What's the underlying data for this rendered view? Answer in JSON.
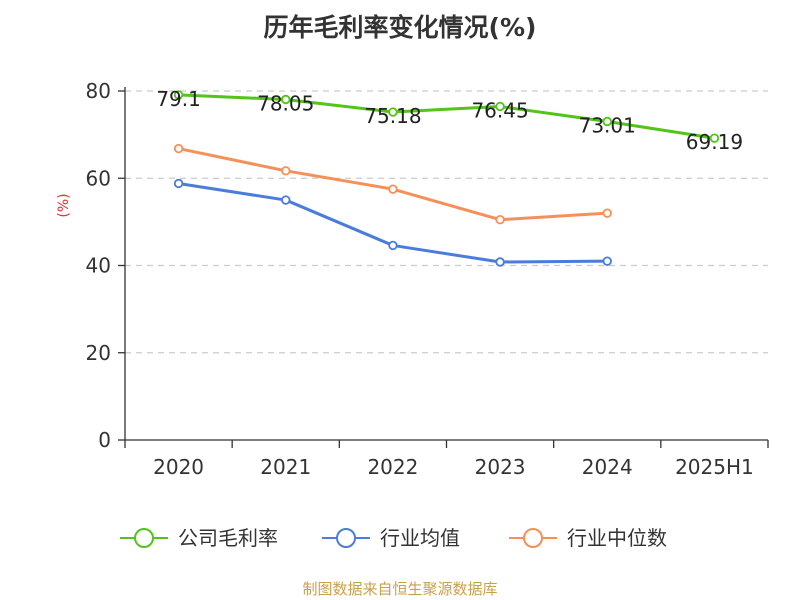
{
  "header": {
    "title": "历年毛利率变化情况(%)"
  },
  "footer": {
    "source": "制图数据来自恒生聚源数据库"
  },
  "colors": {
    "company": "#52c41a",
    "industry_avg": "#4a7ddb",
    "industry_median": "#f59158",
    "ylabel": "#e03030",
    "source": "#c8a24a"
  },
  "chart_data": {
    "type": "line",
    "categories": [
      "2020",
      "2021",
      "2022",
      "2023",
      "2024",
      "2025H1"
    ],
    "ylabel": "(%)",
    "ylim": [
      0,
      80
    ],
    "yticks": [
      0,
      20,
      40,
      60,
      80
    ],
    "grid": true,
    "legend_position": "bottom",
    "series": [
      {
        "name": "公司毛利率",
        "values": [
          79.1,
          78.05,
          75.18,
          76.45,
          73.01,
          69.19
        ],
        "labels": [
          "79.1",
          "78.05",
          "75.18",
          "76.45",
          "73.01",
          "69.19"
        ]
      },
      {
        "name": "行业均值",
        "values": [
          58.8,
          55.0,
          44.6,
          40.8,
          41.0,
          null
        ]
      },
      {
        "name": "行业中位数",
        "values": [
          66.8,
          61.7,
          57.5,
          50.5,
          52.0,
          null
        ]
      }
    ]
  }
}
